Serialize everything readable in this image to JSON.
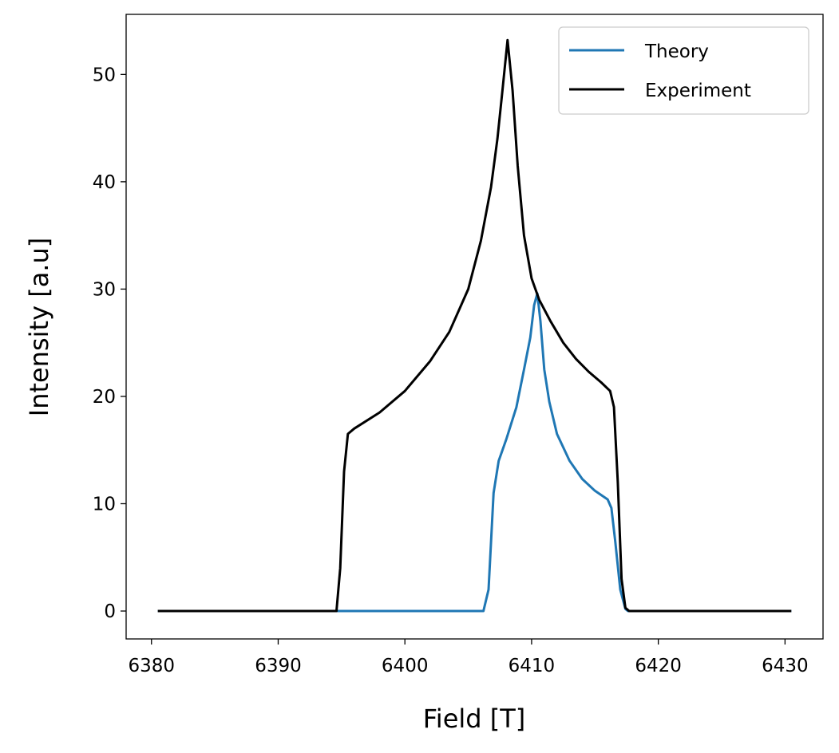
{
  "chart_data": {
    "type": "line",
    "xlabel": "Field [T]",
    "ylabel": "Intensity [a.u]",
    "xlim": [
      6378,
      6433
    ],
    "ylim": [
      -2.6,
      55.6
    ],
    "xticks": [
      6380,
      6390,
      6400,
      6410,
      6420,
      6430
    ],
    "yticks": [
      0,
      10,
      20,
      30,
      40,
      50
    ],
    "grid": false,
    "legend": "top-right",
    "series": [
      {
        "name": "Theory",
        "color": "#1f77b4",
        "x": [
          6380.5,
          6406.2,
          6406.6,
          6407.0,
          6407.4,
          6408.0,
          6408.8,
          6409.4,
          6409.9,
          6410.2,
          6410.45,
          6410.7,
          6411.0,
          6411.4,
          6412.0,
          6413.0,
          6414.0,
          6415.0,
          6416.0,
          6416.3,
          6416.6,
          6417.0,
          6417.4,
          6417.6,
          6430.5
        ],
        "y": [
          0,
          0,
          2,
          11,
          14,
          16,
          19,
          22.5,
          25.5,
          28.5,
          29.6,
          27,
          22.5,
          19.5,
          16.5,
          14,
          12.3,
          11.2,
          10.4,
          9.6,
          6.5,
          2,
          0.2,
          0,
          0
        ]
      },
      {
        "name": "Experiment",
        "color": "#000000",
        "x": [
          6380.5,
          6394.6,
          6394.9,
          6395.2,
          6395.5,
          6396.0,
          6398.0,
          6400.0,
          6402.0,
          6403.5,
          6405.0,
          6406.0,
          6406.8,
          6407.3,
          6407.7,
          6408.1,
          6408.5,
          6408.9,
          6409.4,
          6410.0,
          6410.6,
          6411.5,
          6412.5,
          6413.5,
          6414.5,
          6415.5,
          6416.2,
          6416.5,
          6416.8,
          6417.1,
          6417.4,
          6417.7,
          6430.5
        ],
        "y": [
          0,
          0,
          4,
          13,
          16.5,
          17,
          18.5,
          20.5,
          23.3,
          26,
          30,
          34.5,
          39.5,
          44,
          48.5,
          53.2,
          48.5,
          41.5,
          35,
          31,
          29,
          27,
          25,
          23.5,
          22.3,
          21.3,
          20.5,
          19,
          12,
          3,
          0.3,
          0,
          0
        ]
      }
    ]
  }
}
